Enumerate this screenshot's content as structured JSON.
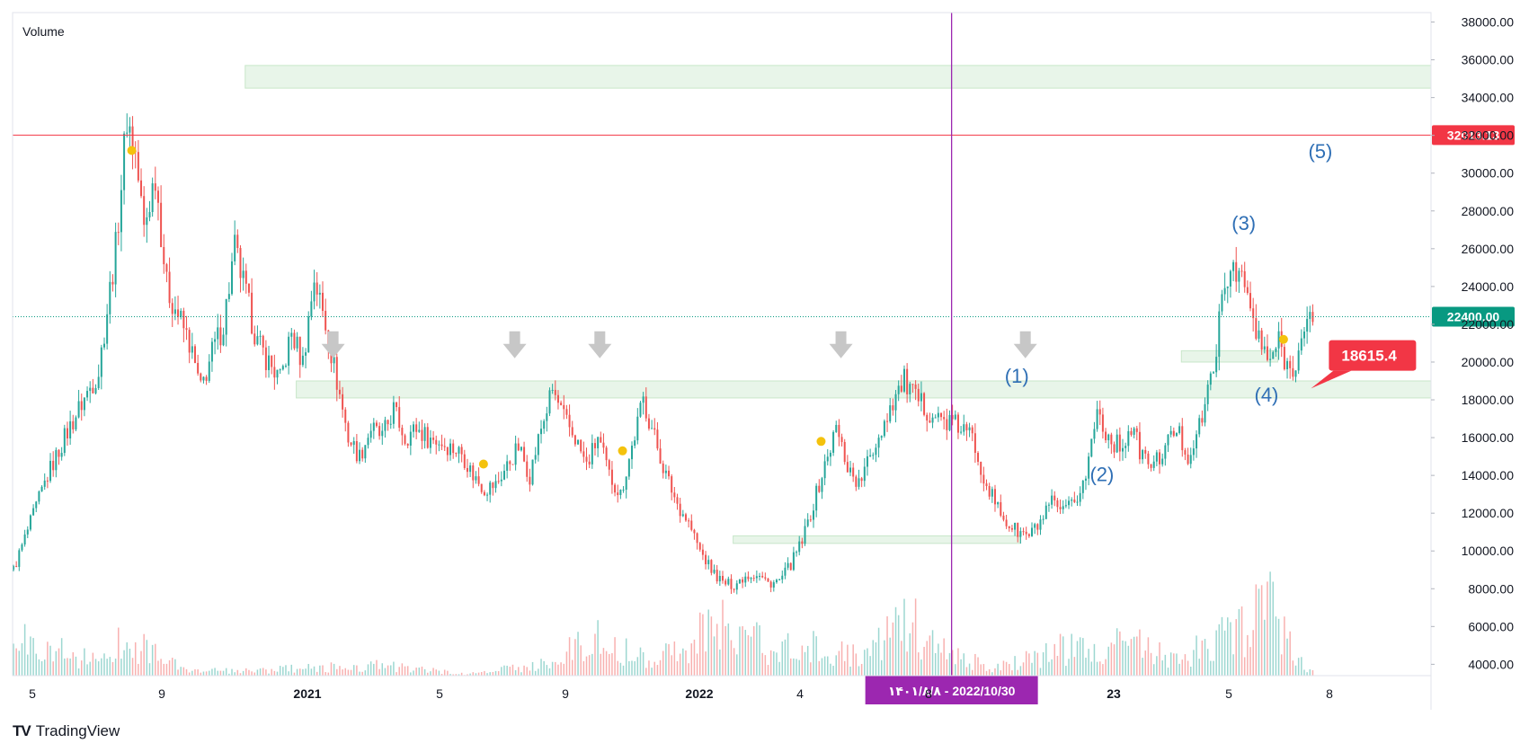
{
  "chart_data": {
    "type": "candlestick",
    "title": "",
    "indicator_label": "Volume",
    "y_axis": {
      "range": [
        3400,
        38500
      ],
      "tick_step": 2000,
      "tick_min": 4000,
      "tick_max": 38000
    },
    "x_tick_labels": [
      {
        "label": "5",
        "bold": false
      },
      {
        "label": "9",
        "bold": false
      },
      {
        "label": "2021",
        "bold": true
      },
      {
        "label": "5",
        "bold": false
      },
      {
        "label": "9",
        "bold": false
      },
      {
        "label": "2022",
        "bold": true
      },
      {
        "label": "4",
        "bold": false
      },
      {
        "label": "8",
        "bold": false
      },
      {
        "label": "23",
        "bold": true
      },
      {
        "label": "5",
        "bold": false
      },
      {
        "label": "8",
        "bold": false
      }
    ],
    "price_series": [
      [
        0,
        9000
      ],
      [
        6,
        11500
      ],
      [
        12,
        14000
      ],
      [
        18,
        16000
      ],
      [
        24,
        17800
      ],
      [
        30,
        19500
      ],
      [
        36,
        26000
      ],
      [
        40,
        33000
      ],
      [
        43,
        31000
      ],
      [
        46,
        27000
      ],
      [
        50,
        30000
      ],
      [
        54,
        24000
      ],
      [
        58,
        22500
      ],
      [
        62,
        21000
      ],
      [
        66,
        18500
      ],
      [
        70,
        20500
      ],
      [
        74,
        22000
      ],
      [
        78,
        26000
      ],
      [
        82,
        23500
      ],
      [
        86,
        21000
      ],
      [
        90,
        20000
      ],
      [
        94,
        19000
      ],
      [
        98,
        21500
      ],
      [
        102,
        20000
      ],
      [
        106,
        24500
      ],
      [
        110,
        22000
      ],
      [
        114,
        19000
      ],
      [
        118,
        16000
      ],
      [
        122,
        15000
      ],
      [
        126,
        16500
      ],
      [
        130,
        16000
      ],
      [
        134,
        17500
      ],
      [
        138,
        16000
      ],
      [
        142,
        16500
      ],
      [
        146,
        16000
      ],
      [
        150,
        15800
      ],
      [
        154,
        15500
      ],
      [
        158,
        15200
      ],
      [
        162,
        14000
      ],
      [
        166,
        13300
      ],
      [
        170,
        13500
      ],
      [
        174,
        14500
      ],
      [
        178,
        15500
      ],
      [
        182,
        14000
      ],
      [
        186,
        16500
      ],
      [
        190,
        18500
      ],
      [
        194,
        17000
      ],
      [
        198,
        16000
      ],
      [
        202,
        14500
      ],
      [
        206,
        16000
      ],
      [
        210,
        14000
      ],
      [
        214,
        13000
      ],
      [
        218,
        15500
      ],
      [
        222,
        18000
      ],
      [
        226,
        16000
      ],
      [
        230,
        14000
      ],
      [
        234,
        12500
      ],
      [
        238,
        11500
      ],
      [
        242,
        10000
      ],
      [
        246,
        9000
      ],
      [
        250,
        8300
      ],
      [
        254,
        8200
      ],
      [
        258,
        8700
      ],
      [
        262,
        8800
      ],
      [
        266,
        8300
      ],
      [
        270,
        8400
      ],
      [
        274,
        9300
      ],
      [
        278,
        10500
      ],
      [
        282,
        12500
      ],
      [
        286,
        14500
      ],
      [
        290,
        16500
      ],
      [
        294,
        14500
      ],
      [
        298,
        13500
      ],
      [
        302,
        15000
      ],
      [
        306,
        16500
      ],
      [
        310,
        18000
      ],
      [
        314,
        19000
      ],
      [
        318,
        18000
      ],
      [
        322,
        17500
      ],
      [
        326,
        17000
      ],
      [
        330,
        16800
      ],
      [
        334,
        16500
      ],
      [
        338,
        16000
      ],
      [
        342,
        14000
      ],
      [
        346,
        12500
      ],
      [
        350,
        11500
      ],
      [
        354,
        11000
      ],
      [
        358,
        10800
      ],
      [
        362,
        11500
      ],
      [
        366,
        12500
      ],
      [
        370,
        12000
      ],
      [
        374,
        12500
      ],
      [
        378,
        14000
      ],
      [
        382,
        17500
      ],
      [
        386,
        16000
      ],
      [
        390,
        15500
      ],
      [
        394,
        16500
      ],
      [
        398,
        15000
      ],
      [
        402,
        14500
      ],
      [
        406,
        15500
      ],
      [
        410,
        16500
      ],
      [
        414,
        15000
      ],
      [
        418,
        16500
      ],
      [
        422,
        19000
      ],
      [
        426,
        23000
      ],
      [
        430,
        25500
      ],
      [
        434,
        24000
      ],
      [
        438,
        21500
      ],
      [
        442,
        20000
      ],
      [
        446,
        21000
      ],
      [
        450,
        19500
      ],
      [
        454,
        21000
      ],
      [
        458,
        22500
      ]
    ],
    "volume_series": [
      [
        0,
        2400
      ],
      [
        10,
        2200
      ],
      [
        20,
        1600
      ],
      [
        30,
        900
      ],
      [
        40,
        2800
      ],
      [
        60,
        400
      ],
      [
        80,
        300
      ],
      [
        100,
        500
      ],
      [
        130,
        700
      ],
      [
        160,
        100
      ],
      [
        190,
        900
      ],
      [
        204,
        2900
      ],
      [
        210,
        2000
      ],
      [
        226,
        1300
      ],
      [
        250,
        3500
      ],
      [
        262,
        2400
      ],
      [
        270,
        1800
      ],
      [
        280,
        2100
      ],
      [
        300,
        1200
      ],
      [
        316,
        4000
      ],
      [
        330,
        1400
      ],
      [
        346,
        600
      ],
      [
        366,
        1800
      ],
      [
        380,
        2000
      ],
      [
        396,
        2400
      ],
      [
        410,
        1400
      ],
      [
        430,
        2900
      ],
      [
        442,
        5300
      ],
      [
        456,
        400
      ]
    ],
    "volume_scale_max": 12000,
    "zones": [
      {
        "x0": 82,
        "x1": 500,
        "y0": 34500,
        "y1": 35700
      },
      {
        "x0": 100,
        "x1": 500,
        "y0": 18100,
        "y1": 19000
      },
      {
        "x0": 254,
        "x1": 355,
        "y0": 10400,
        "y1": 10800
      },
      {
        "x0": 412,
        "x1": 446,
        "y0": 20000,
        "y1": 20600
      }
    ],
    "horizontal_lines": [
      {
        "value": 32013.13,
        "label": "32013.13",
        "color": "#f23645",
        "style": "solid"
      },
      {
        "value": 22400.0,
        "label": "22400.00",
        "color": "#089981",
        "style": "dotted"
      }
    ],
    "vertical_line": {
      "x": 331,
      "color": "#9c27b0",
      "label": "۱۴۰۱/۸/۸ - 2022/10/30"
    },
    "arrows": [
      {
        "x": 113,
        "y": 20200
      },
      {
        "x": 177,
        "y": 20200
      },
      {
        "x": 207,
        "y": 20200
      },
      {
        "x": 292,
        "y": 20200
      },
      {
        "x": 357,
        "y": 20200
      }
    ],
    "wave_labels": [
      {
        "text": "(1)",
        "x": 354,
        "y": 18900
      },
      {
        "text": "(2)",
        "x": 384,
        "y": 13700
      },
      {
        "text": "(3)",
        "x": 434,
        "y": 27000
      },
      {
        "text": "(4)",
        "x": 442,
        "y": 17900
      },
      {
        "text": "(5)",
        "x": 461,
        "y": 30800
      }
    ],
    "dots": [
      {
        "x": 42,
        "y": 31200
      },
      {
        "x": 166,
        "y": 14600
      },
      {
        "x": 215,
        "y": 15300
      },
      {
        "x": 285,
        "y": 15800
      },
      {
        "x": 448,
        "y": 21200
      }
    ],
    "callout": {
      "label": "18615.4",
      "x": 464,
      "y": 20400,
      "pointer_y": 18600,
      "color": "#f23645"
    },
    "colors": {
      "up": "#26a69a",
      "down": "#ef5350",
      "zone_fill": "#e8f5e9",
      "zone_stroke": "#c8e6c9",
      "wave": "#2962ff",
      "arrow": "#c7c7c7",
      "dot": "#f4c20d",
      "axis_text": "#131722",
      "grid": "#f0f3fa"
    }
  },
  "branding": {
    "logo": "TV",
    "name": "TradingView"
  }
}
